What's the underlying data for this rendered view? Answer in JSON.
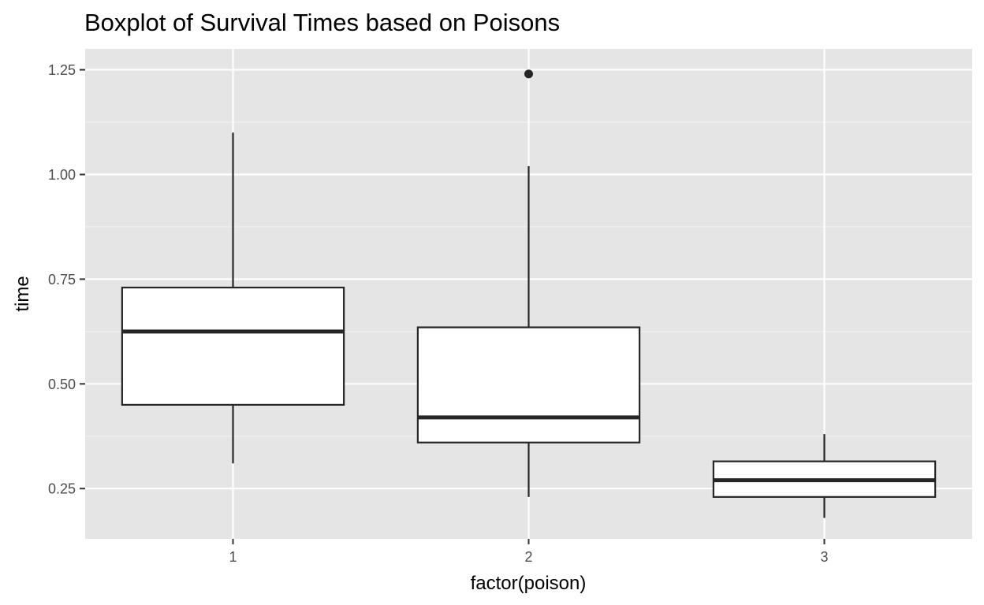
{
  "chart_data": {
    "type": "boxplot",
    "title": "Boxplot of Survival Times based on Poisons",
    "xlabel": "factor(poison)",
    "ylabel": "time",
    "categories": [
      "1",
      "2",
      "3"
    ],
    "ylim": [
      0.13,
      1.3
    ],
    "y_ticks": [
      0.25,
      0.5,
      0.75,
      1.0,
      1.25
    ],
    "y_tick_labels": [
      "0.25",
      "0.50",
      "0.75",
      "1.00",
      "1.25"
    ],
    "boxes": [
      {
        "category": "1",
        "lower_whisker": 0.31,
        "q1": 0.45,
        "median": 0.625,
        "q3": 0.73,
        "upper_whisker": 1.1,
        "outliers": []
      },
      {
        "category": "2",
        "lower_whisker": 0.23,
        "q1": 0.36,
        "median": 0.42,
        "q3": 0.635,
        "upper_whisker": 1.02,
        "outliers": [
          1.24
        ]
      },
      {
        "category": "3",
        "lower_whisker": 0.18,
        "q1": 0.23,
        "median": 0.27,
        "q3": 0.315,
        "upper_whisker": 0.38,
        "outliers": []
      }
    ],
    "grid": true,
    "legend": "none",
    "colors": {
      "panel_background": "#e5e5e5",
      "grid_major": "#ffffff",
      "grid_minor": "#f2f2f2",
      "box_fill": "#ffffff",
      "box_line": "#262626",
      "tick_mark": "#333333"
    }
  }
}
